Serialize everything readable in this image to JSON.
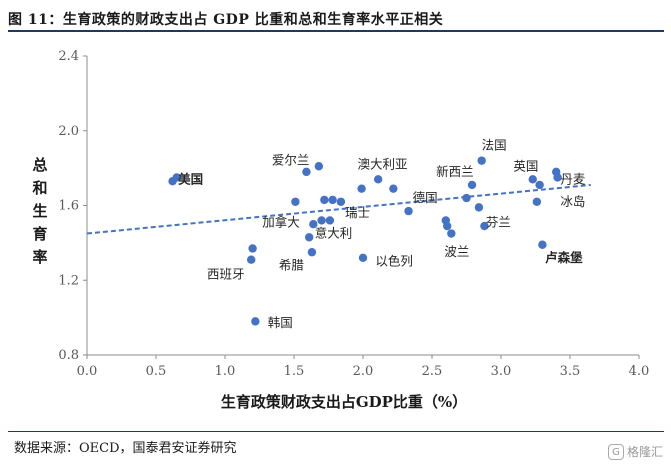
{
  "title": "图 11：生育政策的财政支出占 GDP 比重和总和生育率水平正相关",
  "source": "数据来源：OECD，国泰君安证券研究",
  "watermark": "格隆汇",
  "chart_data": {
    "type": "scatter",
    "xlabel": "生育政策财政支出占GDP比重（%）",
    "ylabel": "总和生育率",
    "xlim": [
      0,
      4
    ],
    "ylim": [
      0.8,
      2.4
    ],
    "xticks": [
      "0.0",
      "0.5",
      "1.0",
      "1.5",
      "2.0",
      "2.5",
      "3.0",
      "3.5",
      "4.0"
    ],
    "yticks": [
      "0.8",
      "1.2",
      "1.6",
      "2.0",
      "2.4"
    ],
    "point_color": "#4472c4",
    "trendline": {
      "x": [
        0,
        3.65
      ],
      "y": [
        1.45,
        1.71
      ],
      "style": "dashed",
      "color": "#4472c4"
    },
    "points": [
      {
        "x": 0.62,
        "y": 1.73
      },
      {
        "x": 0.65,
        "y": 1.75
      },
      {
        "x": 1.19,
        "y": 1.31
      },
      {
        "x": 1.2,
        "y": 1.37
      },
      {
        "x": 1.22,
        "y": 0.98
      },
      {
        "x": 1.51,
        "y": 1.62
      },
      {
        "x": 1.59,
        "y": 1.78
      },
      {
        "x": 1.61,
        "y": 1.43
      },
      {
        "x": 1.63,
        "y": 1.35
      },
      {
        "x": 1.64,
        "y": 1.5
      },
      {
        "x": 1.68,
        "y": 1.81
      },
      {
        "x": 1.7,
        "y": 1.52
      },
      {
        "x": 1.72,
        "y": 1.63
      },
      {
        "x": 1.76,
        "y": 1.52
      },
      {
        "x": 1.78,
        "y": 1.63
      },
      {
        "x": 1.84,
        "y": 1.62
      },
      {
        "x": 1.99,
        "y": 1.69
      },
      {
        "x": 2.0,
        "y": 1.32
      },
      {
        "x": 2.11,
        "y": 1.74
      },
      {
        "x": 2.22,
        "y": 1.69
      },
      {
        "x": 2.33,
        "y": 1.57
      },
      {
        "x": 2.6,
        "y": 1.52
      },
      {
        "x": 2.61,
        "y": 1.49
      },
      {
        "x": 2.64,
        "y": 1.45
      },
      {
        "x": 2.75,
        "y": 1.64
      },
      {
        "x": 2.79,
        "y": 1.71
      },
      {
        "x": 2.84,
        "y": 1.59
      },
      {
        "x": 2.86,
        "y": 1.84
      },
      {
        "x": 2.88,
        "y": 1.49
      },
      {
        "x": 3.23,
        "y": 1.74
      },
      {
        "x": 3.26,
        "y": 1.62
      },
      {
        "x": 3.28,
        "y": 1.71
      },
      {
        "x": 3.3,
        "y": 1.39
      },
      {
        "x": 3.4,
        "y": 1.78
      },
      {
        "x": 3.41,
        "y": 1.75
      }
    ],
    "annotations": [
      {
        "text": "美国",
        "x": 0.66,
        "y": 1.74,
        "bold": true
      },
      {
        "text": "爱尔兰",
        "x": 1.34,
        "y": 1.84
      },
      {
        "text": "澳大利亚",
        "x": 1.96,
        "y": 1.82
      },
      {
        "text": "法国",
        "x": 2.86,
        "y": 1.92
      },
      {
        "text": "新西兰",
        "x": 2.53,
        "y": 1.78
      },
      {
        "text": "英国",
        "x": 3.09,
        "y": 1.81
      },
      {
        "text": "丹麦",
        "x": 3.43,
        "y": 1.74
      },
      {
        "text": "冰岛",
        "x": 3.43,
        "y": 1.62
      },
      {
        "text": "德国",
        "x": 2.36,
        "y": 1.64
      },
      {
        "text": "瑞士",
        "x": 1.87,
        "y": 1.56
      },
      {
        "text": "加拿大",
        "x": 1.27,
        "y": 1.51
      },
      {
        "text": "意大利",
        "x": 1.65,
        "y": 1.45
      },
      {
        "text": "芬兰",
        "x": 2.89,
        "y": 1.51
      },
      {
        "text": "波兰",
        "x": 2.59,
        "y": 1.35
      },
      {
        "text": "西班牙",
        "x": 0.87,
        "y": 1.23
      },
      {
        "text": "希腊",
        "x": 1.39,
        "y": 1.28
      },
      {
        "text": "以色列",
        "x": 2.09,
        "y": 1.3
      },
      {
        "text": "卢森堡",
        "x": 3.32,
        "y": 1.32,
        "bold": true
      },
      {
        "text": "韩国",
        "x": 1.31,
        "y": 0.97
      }
    ]
  }
}
